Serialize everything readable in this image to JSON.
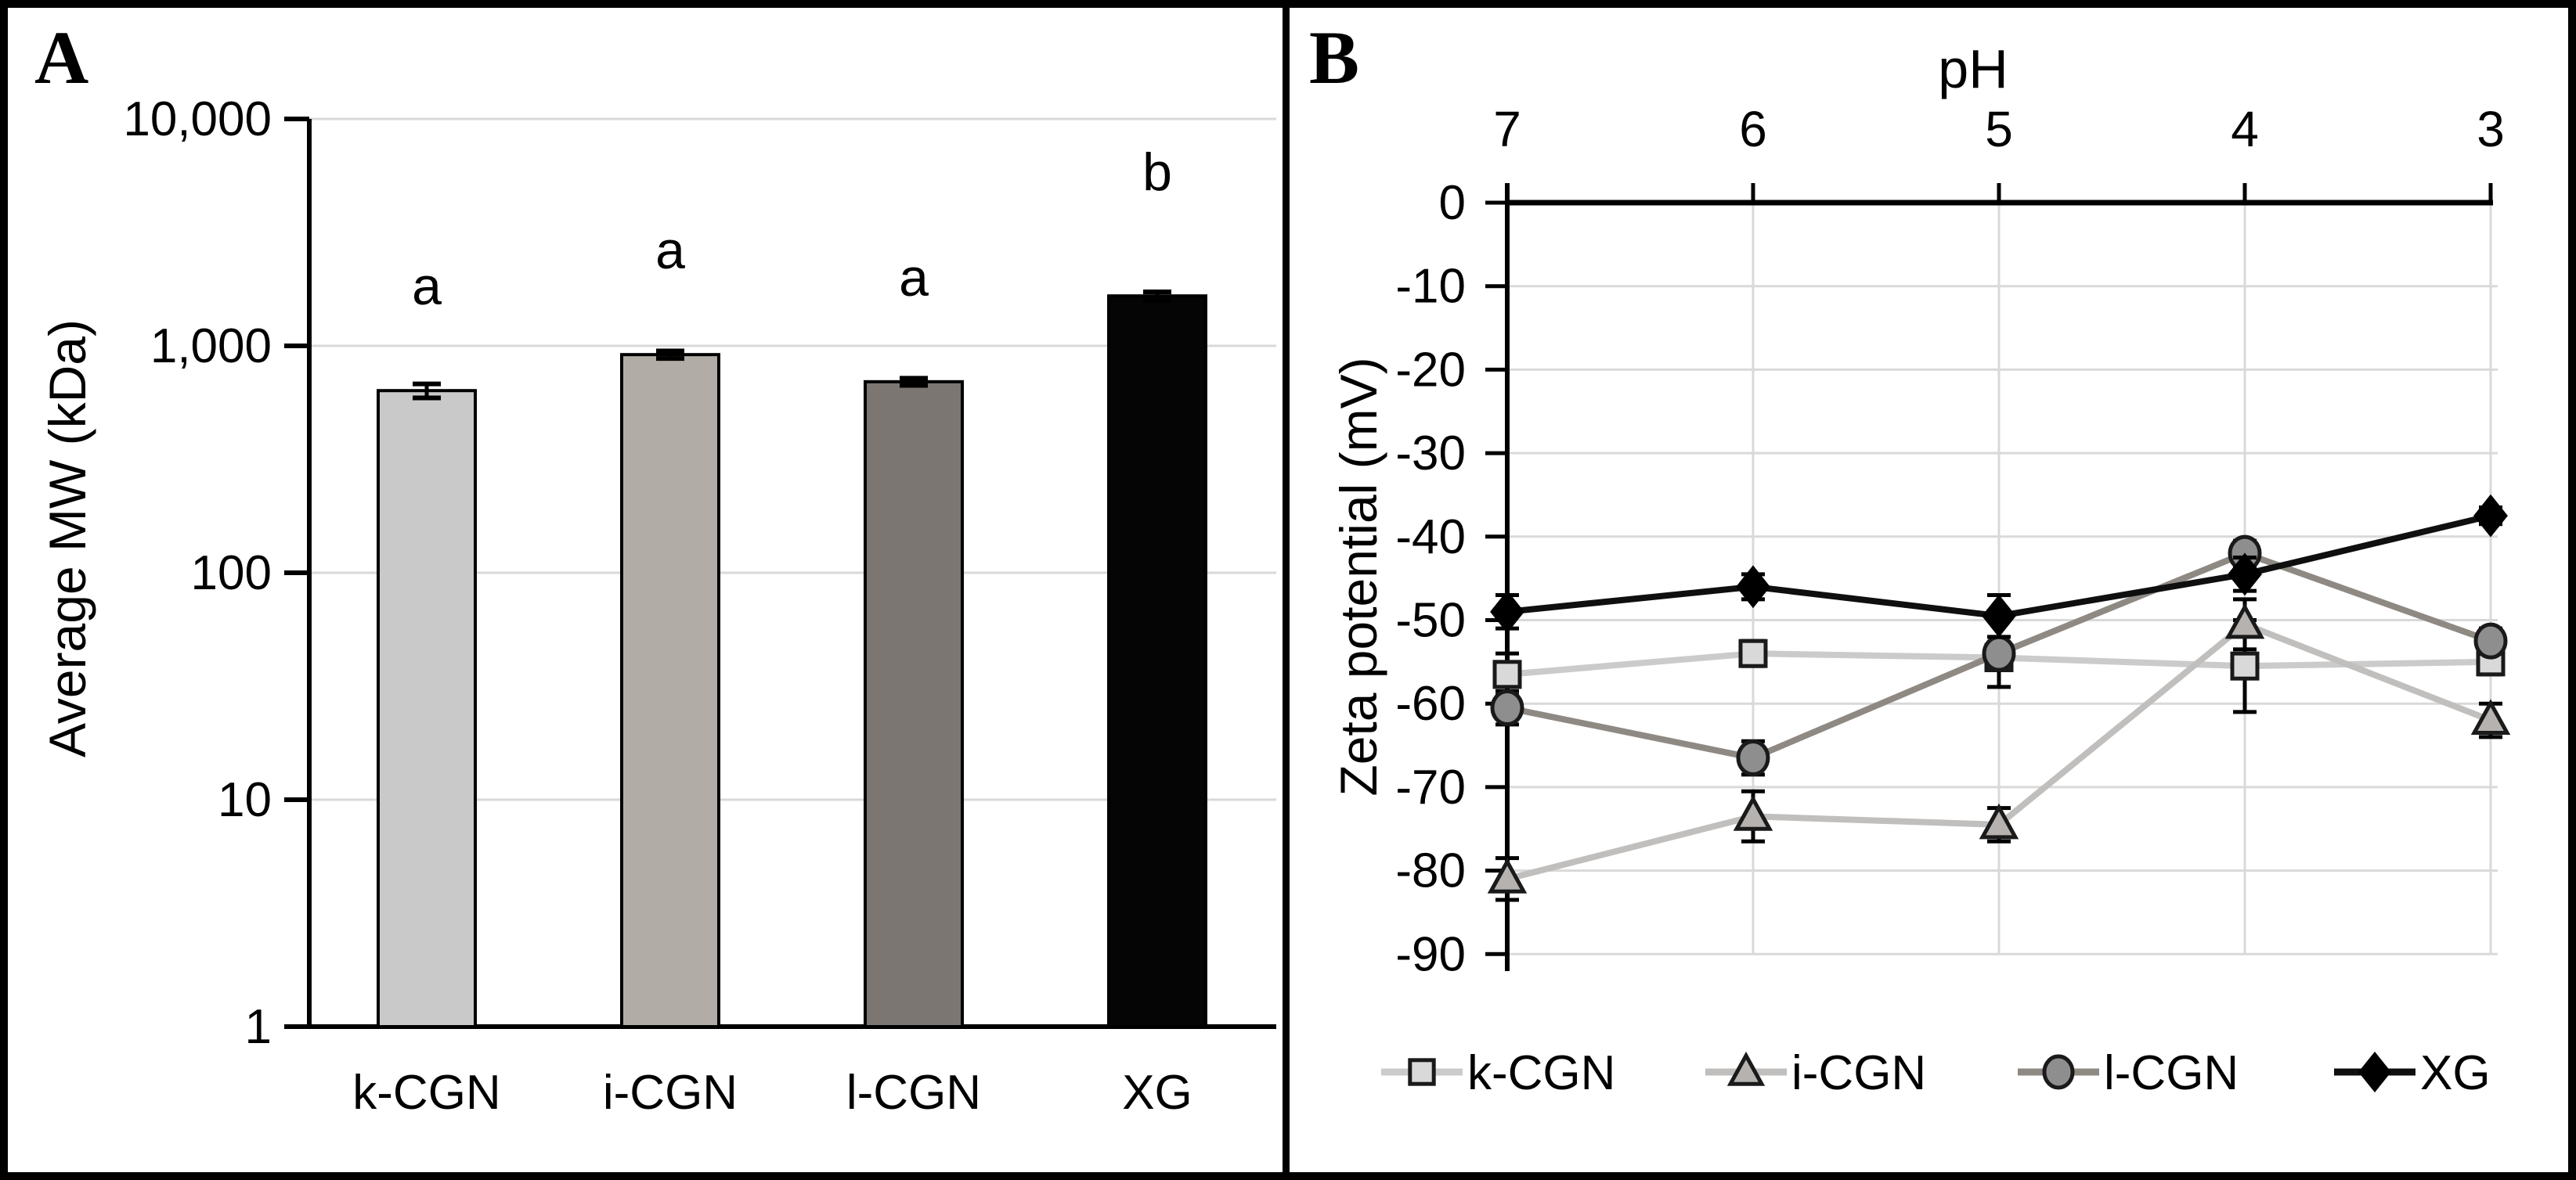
{
  "panels": {
    "a_label": "A",
    "b_label": "B"
  },
  "chart_data": [
    {
      "id": "panel_a",
      "type": "bar",
      "title": "",
      "xlabel": "",
      "ylabel": "Average MW (kDa)",
      "yscale": "log",
      "ylim": [
        1,
        10000
      ],
      "ytick_labels": [
        "10,000",
        "1,000",
        "100",
        "10",
        "1"
      ],
      "ytick_values": [
        10000,
        1000,
        100,
        10,
        1
      ],
      "grid": true,
      "categories": [
        "k-CGN",
        "i-CGN",
        "l-CGN",
        "XG"
      ],
      "values": [
        635,
        915,
        695,
        1660
      ],
      "errors": [
        45,
        35,
        25,
        70
      ],
      "sig_letters": [
        "a",
        "a",
        "a",
        "b"
      ],
      "bar_colors": [
        "#c9c9c9",
        "#b2aca6",
        "#7c7673",
        "#050505"
      ],
      "bar_edge_color": "#000000"
    },
    {
      "id": "panel_b",
      "type": "line",
      "title": "",
      "xlabel": "pH",
      "ylabel": "Zeta potential (mV)",
      "x": [
        7,
        6,
        5,
        4,
        3
      ],
      "x_reversed": true,
      "ylim": [
        -90,
        0
      ],
      "ytick_labels": [
        "0",
        "-10",
        "-20",
        "-30",
        "-40",
        "-50",
        "-60",
        "-70",
        "-80",
        "-90"
      ],
      "ytick_values": [
        0,
        -10,
        -20,
        -30,
        -40,
        -50,
        -60,
        -70,
        -80,
        -90
      ],
      "grid": true,
      "legend_position": "bottom",
      "series": [
        {
          "name": "k-CGN",
          "marker": "square",
          "marker_fill": "#d9d9d9",
          "line_color": "#cbcbcb",
          "values": [
            -56.5,
            -54,
            -54.5,
            -55.5,
            -55
          ],
          "errors": [
            2.5,
            1.5,
            1,
            5.5,
            1.5
          ]
        },
        {
          "name": "i-CGN",
          "marker": "triangle",
          "marker_fill": "#b5b2af",
          "line_color": "#c1bfbd",
          "values": [
            -81,
            -73.5,
            -74.5,
            -50.5,
            -62
          ],
          "errors": [
            2.5,
            3,
            2,
            3,
            2
          ]
        },
        {
          "name": "l-CGN",
          "marker": "circle",
          "marker_fill": "#8e8e8e",
          "line_color": "#8f8984",
          "values": [
            -60.5,
            -66.5,
            -54,
            -42,
            -52.5
          ],
          "errors": [
            2,
            2,
            4,
            1.5,
            1.5
          ]
        },
        {
          "name": "XG",
          "marker": "diamond",
          "marker_fill": "#000000",
          "line_color": "#0f0f0f",
          "values": [
            -49,
            -46,
            -49.5,
            -44.5,
            -37.5
          ],
          "errors": [
            2,
            1.5,
            2.5,
            2,
            1
          ]
        }
      ]
    }
  ]
}
